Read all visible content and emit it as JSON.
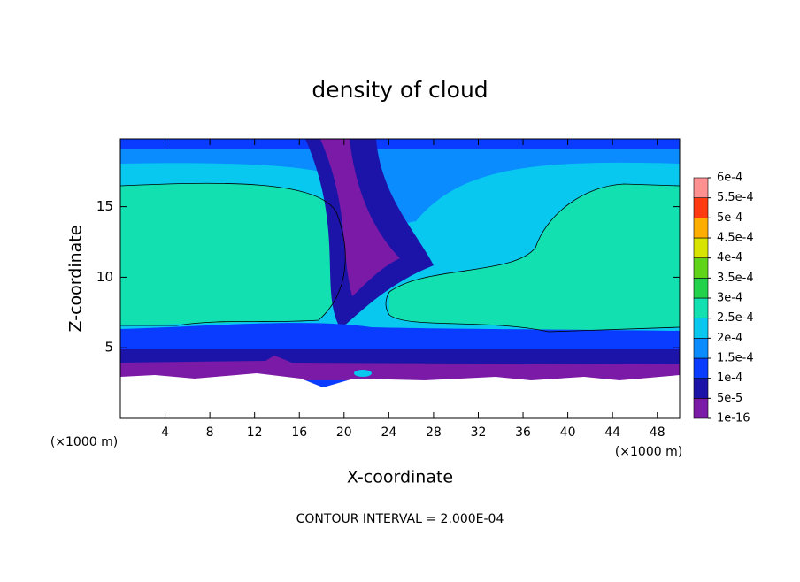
{
  "chart_data": {
    "type": "contour",
    "title": "density of cloud",
    "xlabel": "X-coordinate",
    "ylabel": "Z-coordinate",
    "x_unit_labels": [
      "(×1000 m)",
      "(×1000 m)"
    ],
    "footer": "CONTOUR INTERVAL = 2.000E-04",
    "xlim": [
      0,
      50
    ],
    "ylim": [
      0,
      19.8
    ],
    "xticks": [
      4,
      8,
      12,
      16,
      20,
      24,
      28,
      32,
      36,
      40,
      44,
      48
    ],
    "yticks": [
      5,
      10,
      15
    ],
    "colorbar": {
      "levels": [
        {
          "value": 1e-16,
          "label": "1e-16"
        },
        {
          "value": 5e-05,
          "label": "5e-5"
        },
        {
          "value": 0.0001,
          "label": "1e-4"
        },
        {
          "value": 0.00015,
          "label": "1.5e-4"
        },
        {
          "value": 0.0002,
          "label": "2e-4"
        },
        {
          "value": 0.00025,
          "label": "2.5e-4"
        },
        {
          "value": 0.0003,
          "label": "3e-4"
        },
        {
          "value": 0.00035,
          "label": "3.5e-4"
        },
        {
          "value": 0.0004,
          "label": "4e-4"
        },
        {
          "value": 0.00045,
          "label": "4.5e-4"
        },
        {
          "value": 0.0005,
          "label": "5e-4"
        },
        {
          "value": 0.00055,
          "label": "5.5e-4"
        },
        {
          "value": 0.0006,
          "label": "6e-4"
        }
      ],
      "colors": [
        "#7a1aa6",
        "#1c14a8",
        "#0a3cff",
        "#0a8cff",
        "#08c8f0",
        "#12e0b0",
        "#22d24a",
        "#60d418",
        "#d8e400",
        "#ffae00",
        "#ff3a10",
        "#ff9090"
      ]
    }
  }
}
